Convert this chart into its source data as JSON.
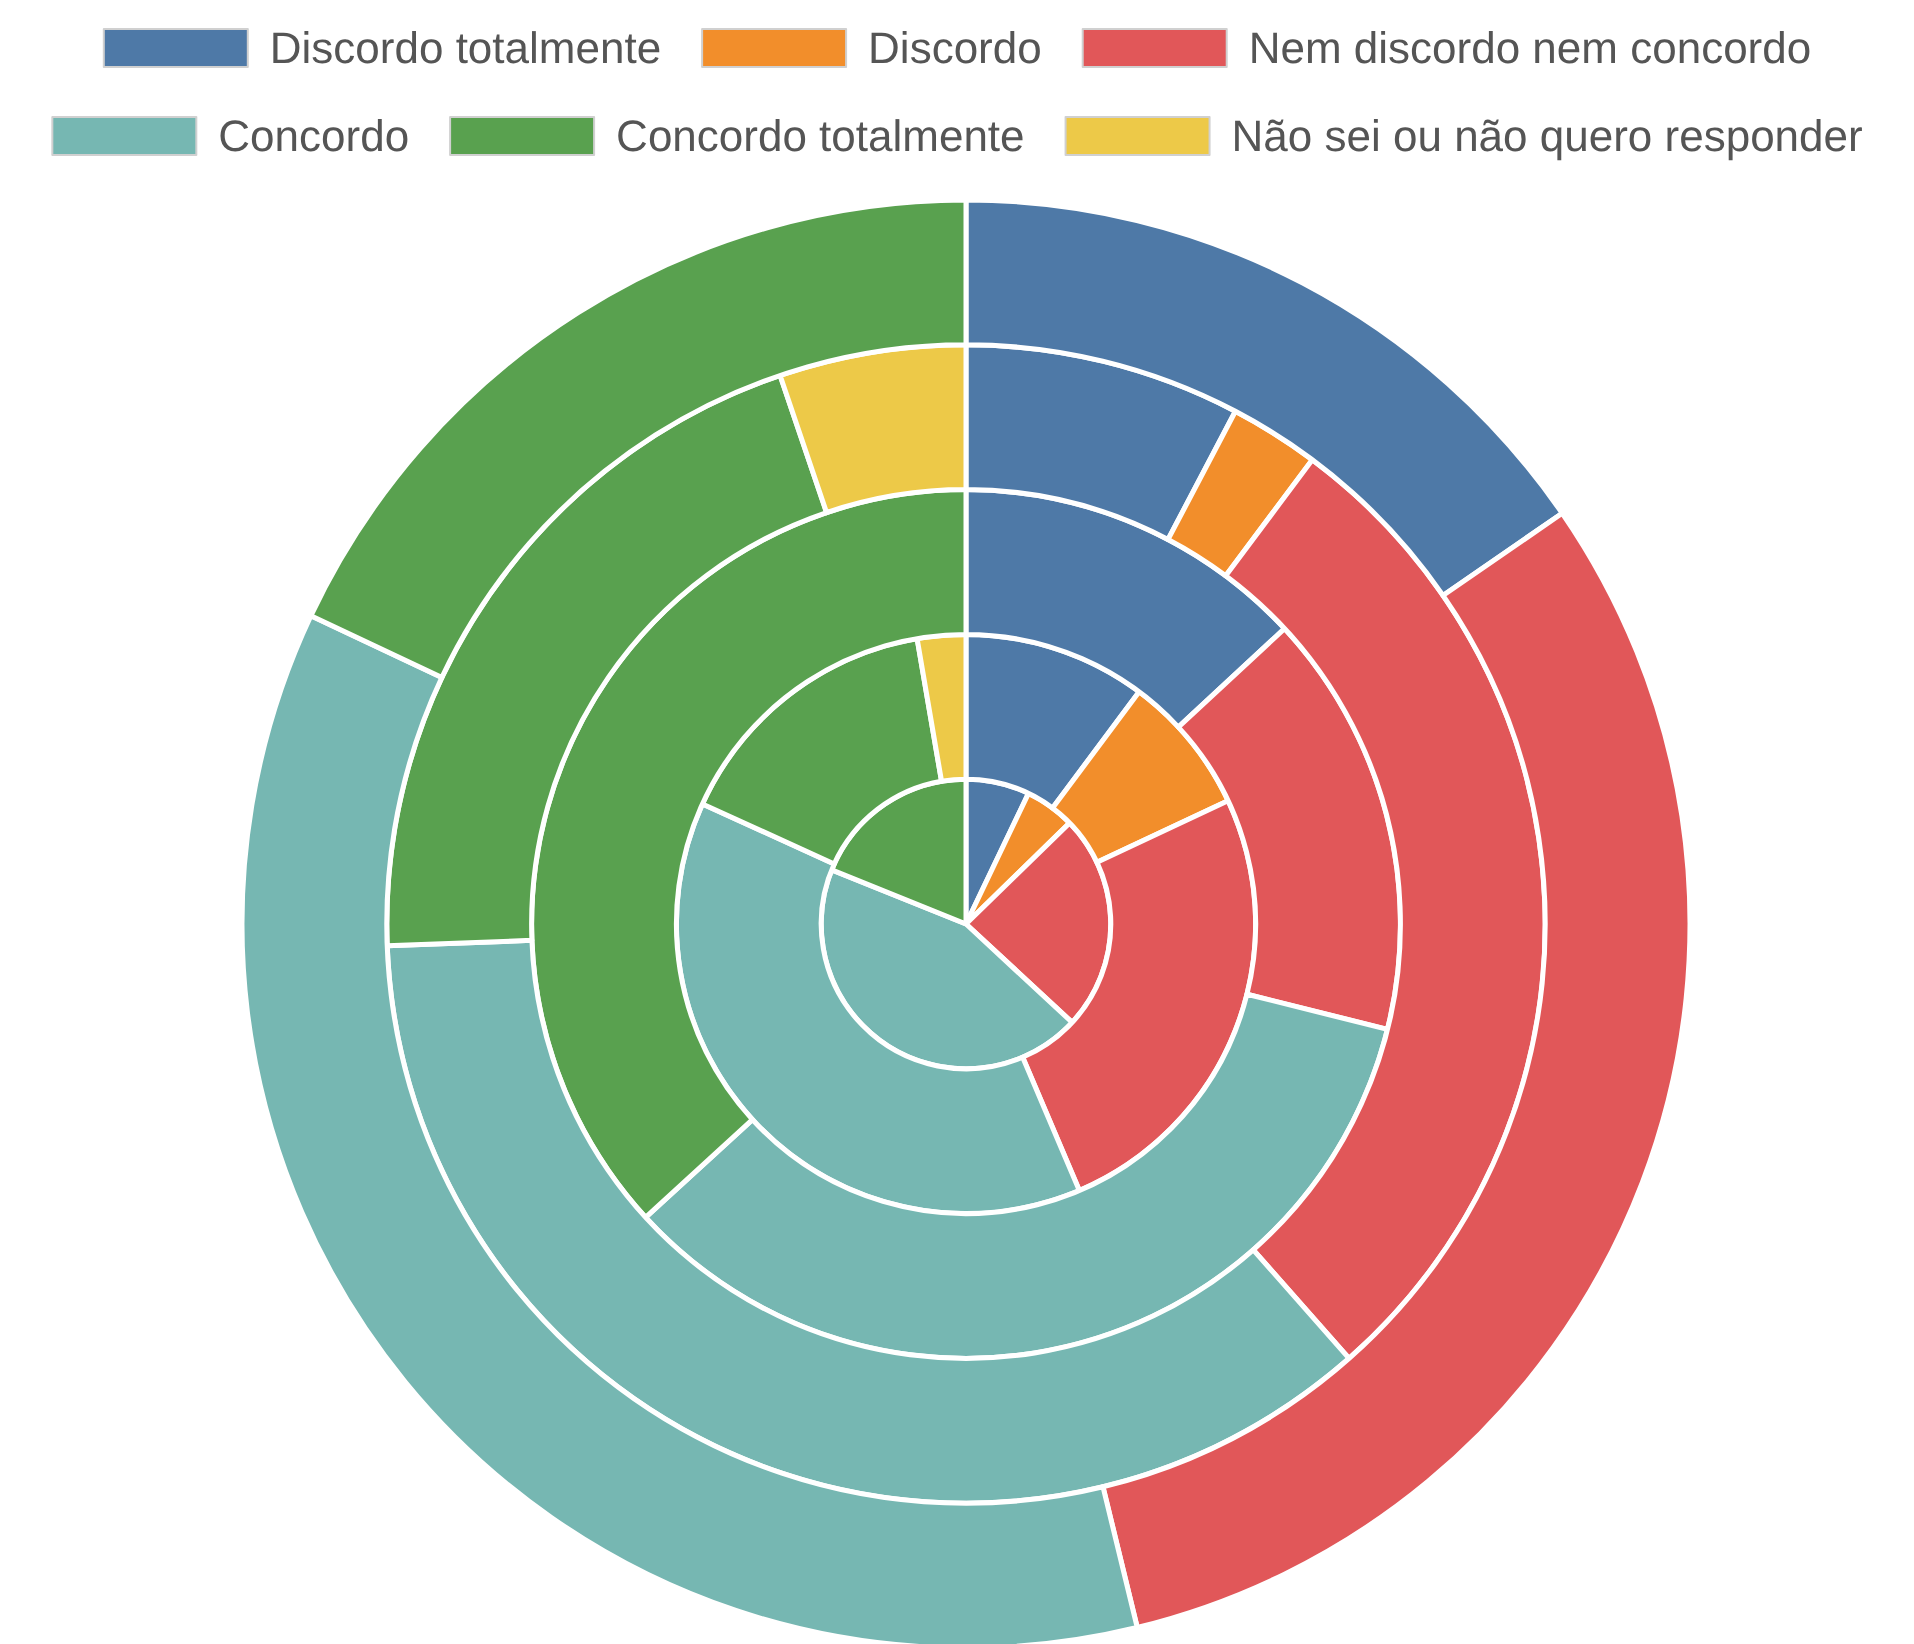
{
  "chart_data": {
    "type": "pie",
    "categories": [
      "Discordo totalmente",
      "Discordo",
      "Nem discordo nem concordo",
      "Concordo",
      "Concordo totalmente",
      "Não sei ou não quero responder"
    ],
    "colors": [
      "#4e79a7",
      "#f28e2b",
      "#e15759",
      "#76b7b2",
      "#59a14f",
      "#edc948"
    ],
    "series": [
      {
        "values": [
          7.1,
          5.6,
          24.2,
          44.2,
          18.9,
          null
        ]
      },
      {
        "values": [
          10.2,
          7.8,
          25.6,
          38.2,
          15.5,
          2.7
        ]
      },
      {
        "values": [
          13.1,
          null,
          15.8,
          34.3,
          36.8,
          null
        ]
      },
      {
        "values": [
          7.7,
          2.5,
          28.3,
          35.9,
          20.4,
          5.2
        ]
      },
      {
        "values": [
          15.4,
          null,
          30.8,
          35.8,
          18.0,
          null
        ]
      }
    ],
    "legend": "top"
  }
}
